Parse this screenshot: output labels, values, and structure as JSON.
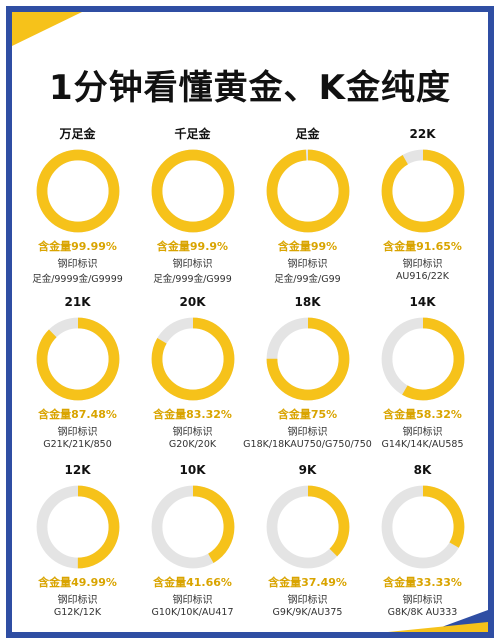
{
  "title": "1分钟看懂黄金、K金纯度",
  "colors": {
    "gold": "#f6c21a",
    "empty": "#e4e4e4",
    "frame": "#2f4ea3",
    "text_gold": "#d9a400"
  },
  "items": [
    {
      "label": "万足金",
      "fraction": 0.9999,
      "content": "含金量99.99%",
      "mark_title": "钢印标识",
      "marks": "足金/9999金/G9999"
    },
    {
      "label": "千足金",
      "fraction": 0.999,
      "content": "含金量99.9%",
      "mark_title": "钢印标识",
      "marks": "足金/999金/G999"
    },
    {
      "label": "足金",
      "fraction": 0.99,
      "content": "含金量99%",
      "mark_title": "钢印标识",
      "marks": "足金/99金/G99"
    },
    {
      "label": "22K",
      "fraction": 0.9165,
      "content": "含金量91.65%",
      "mark_title": "钢印标识",
      "marks": "AU916/22K"
    },
    {
      "label": "21K",
      "fraction": 0.8748,
      "content": "含金量87.48%",
      "mark_title": "钢印标识",
      "marks": "G21K/21K/850"
    },
    {
      "label": "20K",
      "fraction": 0.8332,
      "content": "含金量83.32%",
      "mark_title": "钢印标识",
      "marks": "G20K/20K"
    },
    {
      "label": "18K",
      "fraction": 0.75,
      "content": "含金量75%",
      "mark_title": "钢印标识",
      "marks": "G18K/18KAU750/G750/750"
    },
    {
      "label": "14K",
      "fraction": 0.5832,
      "content": "含金量58.32%",
      "mark_title": "钢印标识",
      "marks": "G14K/14K/AU585"
    },
    {
      "label": "12K",
      "fraction": 0.4999,
      "content": "含金量49.99%",
      "mark_title": "钢印标识",
      "marks": "G12K/12K"
    },
    {
      "label": "10K",
      "fraction": 0.4166,
      "content": "含金量41.66%",
      "mark_title": "钢印标识",
      "marks": "G10K/10K/AU417"
    },
    {
      "label": "9K",
      "fraction": 0.3749,
      "content": "含金量37.49%",
      "mark_title": "钢印标识",
      "marks": "G9K/9K/AU375"
    },
    {
      "label": "8K",
      "fraction": 0.3333,
      "content": "含金量33.33%",
      "mark_title": "钢印标识",
      "marks": "G8K/8K AU333"
    }
  ]
}
